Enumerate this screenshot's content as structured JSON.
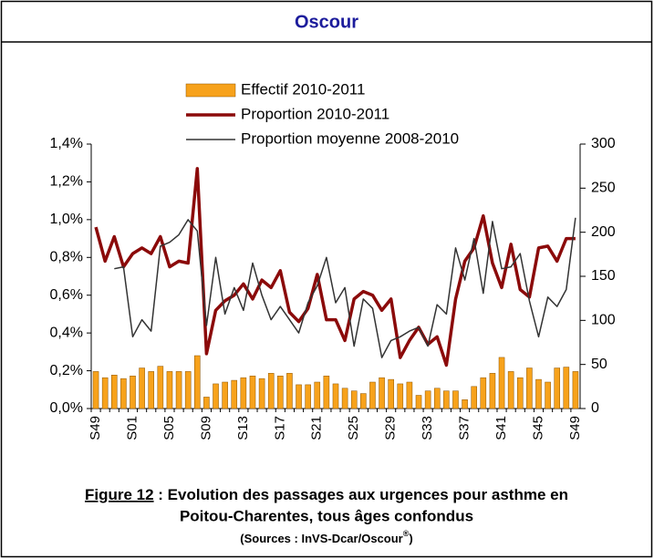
{
  "header": {
    "title": "Oscour"
  },
  "chart_data": {
    "type": "combo",
    "categories": [
      "S49",
      null,
      null,
      null,
      "S01",
      null,
      null,
      null,
      "S05",
      null,
      null,
      null,
      "S09",
      null,
      null,
      null,
      "S13",
      null,
      null,
      null,
      "S17",
      null,
      null,
      null,
      "S21",
      null,
      null,
      null,
      "S25",
      null,
      null,
      null,
      "S29",
      null,
      null,
      null,
      "S33",
      null,
      null,
      null,
      "S37",
      null,
      null,
      null,
      "S41",
      null,
      null,
      null,
      "S45",
      null,
      null,
      null,
      "S49"
    ],
    "series": [
      {
        "name": "Effectif 2010-2011",
        "type": "bar",
        "axis": "y2",
        "color": "#f7a21b",
        "values": [
          42,
          35,
          38,
          34,
          37,
          46,
          42,
          48,
          42,
          42,
          42,
          60,
          13,
          28,
          30,
          32,
          35,
          37,
          34,
          40,
          37,
          40,
          27,
          27,
          30,
          37,
          28,
          23,
          20,
          17,
          30,
          35,
          33,
          28,
          30,
          15,
          20,
          23,
          20,
          20,
          10,
          25,
          35,
          40,
          58,
          42,
          35,
          46,
          33,
          30,
          46,
          47,
          42
        ]
      },
      {
        "name": "Proportion 2010-2011",
        "type": "line",
        "color": "#8b0a0a",
        "values": [
          0.96,
          0.78,
          0.91,
          0.75,
          0.82,
          0.85,
          0.82,
          0.91,
          0.75,
          0.78,
          0.77,
          1.27,
          0.29,
          0.52,
          0.57,
          0.6,
          0.66,
          0.58,
          0.68,
          0.64,
          0.73,
          0.51,
          0.46,
          0.53,
          0.71,
          0.47,
          0.47,
          0.36,
          0.58,
          0.62,
          0.6,
          0.52,
          0.58,
          0.27,
          0.36,
          0.43,
          0.34,
          0.38,
          0.23,
          0.58,
          0.78,
          0.85,
          1.02,
          0.77,
          0.64,
          0.87,
          0.63,
          0.59,
          0.85,
          0.86,
          0.78,
          0.9,
          0.9
        ]
      },
      {
        "name": "Proportion moyenne 2008-2010",
        "type": "line",
        "color": "#333333",
        "values": [
          null,
          null,
          0.74,
          0.75,
          0.38,
          0.47,
          0.41,
          0.86,
          0.88,
          0.92,
          1.0,
          0.94,
          0.44,
          0.8,
          0.5,
          0.64,
          0.52,
          0.77,
          0.6,
          0.47,
          0.54,
          0.47,
          0.4,
          0.56,
          0.65,
          0.8,
          0.56,
          0.64,
          0.33,
          0.58,
          0.53,
          0.27,
          0.36,
          0.38,
          0.41,
          0.43,
          0.33,
          0.55,
          0.5,
          0.85,
          0.68,
          0.9,
          0.61,
          0.99,
          0.74,
          0.75,
          0.82,
          0.57,
          0.38,
          0.59,
          0.54,
          0.63,
          1.01
        ]
      }
    ],
    "ylim": [
      0,
      1.4
    ],
    "yticks": [
      {
        "value": 0,
        "label": "0,0%"
      },
      {
        "value": 0.2,
        "label": "0,2%"
      },
      {
        "value": 0.4,
        "label": "0,4%"
      },
      {
        "value": 0.6,
        "label": "0,6%"
      },
      {
        "value": 0.8,
        "label": "0,8%"
      },
      {
        "value": 1.0,
        "label": "1,0%"
      },
      {
        "value": 1.2,
        "label": "1,2%"
      },
      {
        "value": 1.4,
        "label": "1,4%"
      }
    ],
    "y2lim": [
      0,
      300
    ],
    "y2ticks": [
      0,
      50,
      100,
      150,
      200,
      250,
      300
    ],
    "legend": "top-left"
  },
  "caption": {
    "label": "Figure 12",
    "line1": " : Evolution des passages aux urgences pour asthme en",
    "line2": "Poitou-Charentes, tous âges confondus",
    "source": "(Sources : InVS-Dcar/Oscour",
    "source_mark": "®"
  }
}
